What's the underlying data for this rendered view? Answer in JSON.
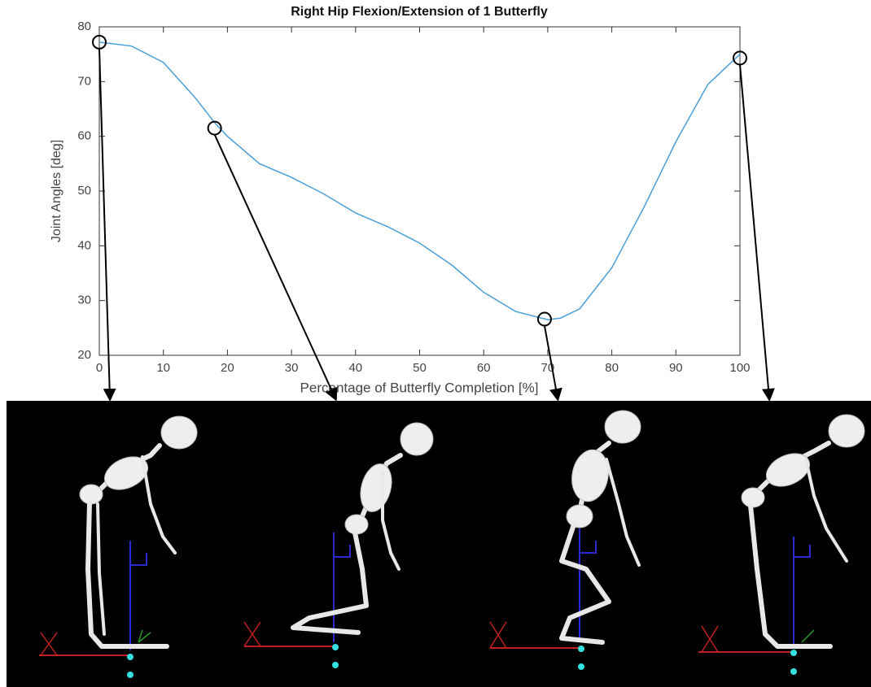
{
  "chart_data": {
    "type": "line",
    "title": "Right Hip Flexion/Extension of 1 Butterfly",
    "x_label": "Percentage of Butterfly Completion [%]",
    "y_label": "Joint Angles [deg]",
    "x": [
      0,
      5,
      10,
      15,
      18,
      20,
      25,
      30,
      35,
      40,
      45,
      50,
      55,
      60,
      65,
      70,
      72,
      75,
      80,
      85,
      90,
      95,
      100
    ],
    "values": [
      77.2,
      76.5,
      73.5,
      67,
      62.5,
      60,
      55,
      52.5,
      49.5,
      46,
      43.5,
      40.5,
      36.5,
      31.5,
      28,
      26.5,
      26.8,
      28.5,
      36,
      47,
      59,
      69.5,
      75
    ],
    "color": "#4a9fd8",
    "markers": {
      "x": [
        0,
        18,
        69.5,
        100
      ],
      "values": [
        77.2,
        61.5,
        26.6,
        74.3
      ],
      "color": "#000000"
    },
    "xlim": [
      0,
      100
    ],
    "ylim": [
      20,
      80
    ],
    "xticks": [
      0,
      10,
      20,
      30,
      40,
      50,
      60,
      70,
      80,
      90,
      100
    ],
    "yticks": [
      20,
      30,
      40,
      50,
      60,
      70,
      80
    ],
    "grid": false
  }
}
